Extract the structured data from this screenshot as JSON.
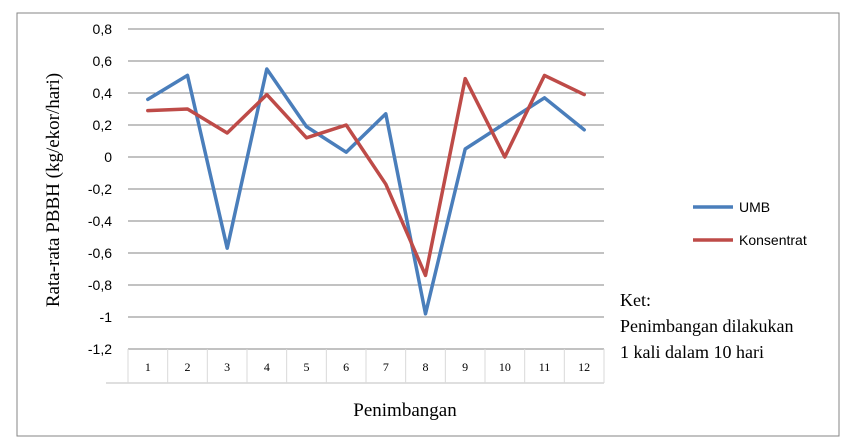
{
  "chart_data": {
    "type": "line",
    "title": "",
    "xlabel": "Penimbangan",
    "ylabel": "Rata-rata PBBH (kg/ekor/hari)",
    "categories": [
      "1",
      "2",
      "3",
      "4",
      "5",
      "6",
      "7",
      "8",
      "9",
      "10",
      "11",
      "12"
    ],
    "ylim": [
      -1.2,
      0.8
    ],
    "ytick_step": 0.2,
    "ytick_labels": [
      "0,8",
      "0,6",
      "0,4",
      "0,2",
      "0",
      "-0,2",
      "-0,4",
      "-0,6",
      "-0,8",
      "-1",
      "-1,2"
    ],
    "grid": true,
    "legend_position": "right",
    "series": [
      {
        "name": "UMB",
        "color": "#4a7ebb",
        "values": [
          0.36,
          0.51,
          -0.57,
          0.55,
          0.19,
          0.03,
          0.27,
          -0.98,
          0.05,
          0.21,
          0.37,
          0.17
        ]
      },
      {
        "name": "Konsentrat",
        "color": "#be4b48",
        "values": [
          0.29,
          0.3,
          0.15,
          0.39,
          0.12,
          0.2,
          -0.17,
          -0.74,
          0.49,
          0.0,
          0.51,
          0.39
        ]
      }
    ]
  },
  "note": {
    "line1": "Ket:",
    "line2": "Penimbangan dilakukan",
    "line3": "1 kali dalam 10 hari"
  }
}
